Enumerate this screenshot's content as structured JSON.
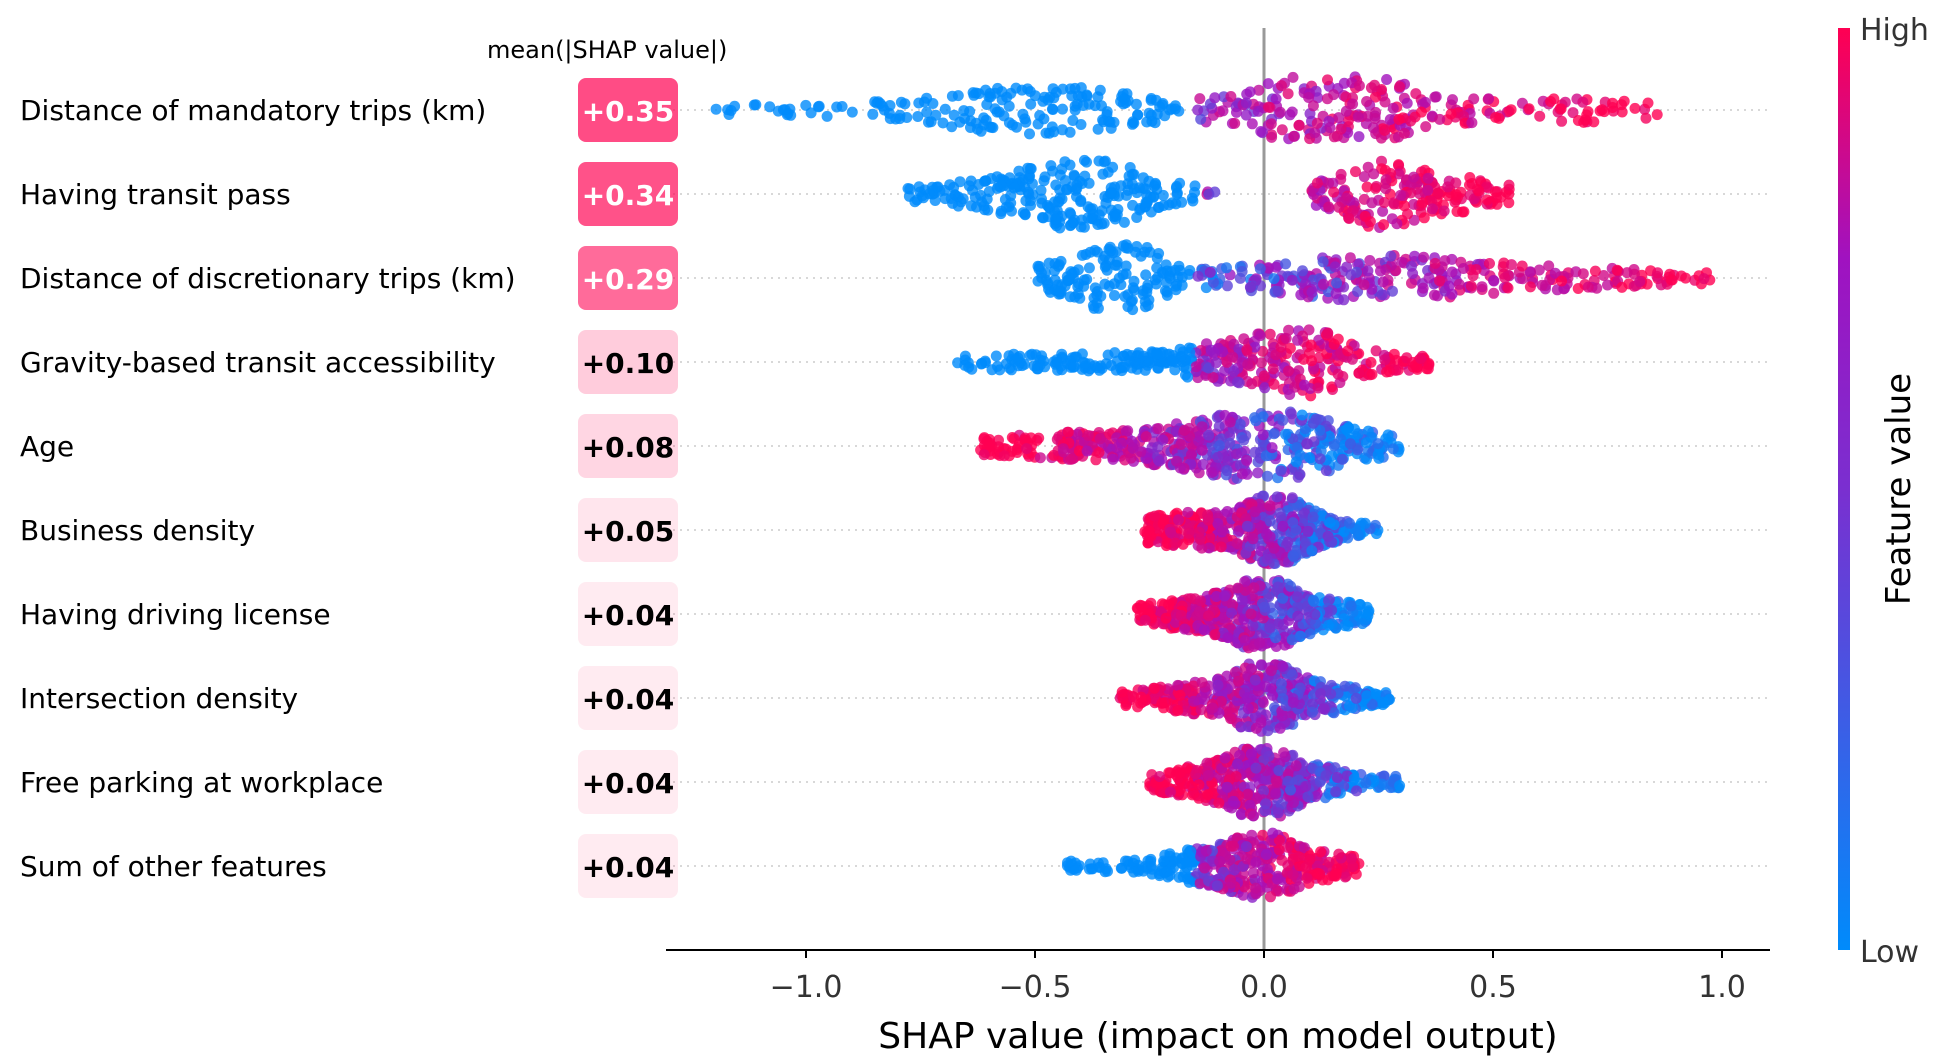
{
  "chart_data": {
    "type": "scatter",
    "subtype": "shap-beeswarm",
    "xlabel": "SHAP value (impact on model output)",
    "x_ticks": [
      -1.0,
      -0.5,
      0.0,
      0.5,
      1.0
    ],
    "x_tick_labels": [
      "−1.0",
      "−0.5",
      "0.0",
      "0.5",
      "1.0"
    ],
    "xlim": [
      -1.3,
      1.1
    ],
    "value_column_header": "mean(|SHAP value|)",
    "colorbar": {
      "title": "Feature value",
      "high_label": "High",
      "low_label": "Low",
      "low_color": "#008bfb",
      "mid_color": "#a012c0",
      "high_color": "#ff0052"
    },
    "badge_color": "#ff0051",
    "features": [
      {
        "name": "Distance of mandatory trips (km)",
        "value_label": "+0.35",
        "mean_abs": 0.35,
        "low_color_side": "negative",
        "bulges": [
          [
            -0.5,
            0.7,
            0.18
          ],
          [
            0.1,
            0.8,
            0.12
          ],
          [
            0.25,
            0.6,
            0.15
          ],
          [
            0.7,
            0.25,
            0.1
          ]
        ],
        "neg_extent": -1.2,
        "pos_extent": 0.86
      },
      {
        "name": "Having transit pass",
        "value_label": "+0.34",
        "mean_abs": 0.34,
        "low_color_side": "negative",
        "bulges": [
          [
            -0.37,
            1.0,
            0.1
          ],
          [
            -0.55,
            0.4,
            0.12
          ],
          [
            0.26,
            1.0,
            0.09
          ],
          [
            0.42,
            0.3,
            0.08
          ]
        ],
        "neg_extent": -0.78,
        "pos_extent": 0.54,
        "gap": [
          -0.1,
          0.1
        ]
      },
      {
        "name": "Distance of discretionary trips (km)",
        "value_label": "+0.29",
        "mean_abs": 0.29,
        "low_color_side": "negative",
        "bulges": [
          [
            -0.3,
            1.0,
            0.06
          ],
          [
            -0.4,
            0.4,
            0.12
          ],
          [
            0.12,
            0.35,
            0.15
          ],
          [
            0.35,
            0.45,
            0.18
          ],
          [
            0.7,
            0.15,
            0.12
          ]
        ],
        "neg_extent": -0.5,
        "pos_extent": 0.98
      },
      {
        "name": "Gravity-based transit accessibility",
        "value_label": "+0.10",
        "mean_abs": 0.1,
        "low_color_side": "negative",
        "bulges": [
          [
            0.07,
            1.0,
            0.06
          ],
          [
            -0.05,
            0.5,
            0.12
          ],
          [
            -0.4,
            0.12,
            0.2
          ],
          [
            0.2,
            0.3,
            0.08
          ]
        ],
        "neg_extent": -0.67,
        "pos_extent": 0.37
      },
      {
        "name": "Age",
        "value_label": "+0.08",
        "mean_abs": 0.08,
        "low_color_side": "positive",
        "bulges": [
          [
            0.03,
            1.0,
            0.08
          ],
          [
            -0.12,
            0.6,
            0.1
          ],
          [
            -0.4,
            0.3,
            0.15
          ],
          [
            0.18,
            0.35,
            0.08
          ]
        ],
        "neg_extent": -0.62,
        "pos_extent": 0.3
      },
      {
        "name": "Business density",
        "value_label": "+0.05",
        "mean_abs": 0.05,
        "low_color_side": "positive",
        "bulges": [
          [
            0.02,
            1.0,
            0.05
          ],
          [
            -0.15,
            0.45,
            0.1
          ],
          [
            0.1,
            0.3,
            0.06
          ]
        ],
        "neg_extent": -0.26,
        "pos_extent": 0.25
      },
      {
        "name": "Having driving license",
        "value_label": "+0.04",
        "mean_abs": 0.04,
        "low_color_side": "positive",
        "bulges": [
          [
            0.0,
            1.0,
            0.05
          ],
          [
            -0.12,
            0.45,
            0.1
          ],
          [
            0.12,
            0.35,
            0.07
          ]
        ],
        "neg_extent": -0.28,
        "pos_extent": 0.23
      },
      {
        "name": "Intersection density",
        "value_label": "+0.04",
        "mean_abs": 0.04,
        "low_color_side": "positive",
        "bulges": [
          [
            0.0,
            1.0,
            0.05
          ],
          [
            -0.12,
            0.4,
            0.1
          ],
          [
            0.12,
            0.35,
            0.07
          ]
        ],
        "neg_extent": -0.32,
        "pos_extent": 0.28
      },
      {
        "name": "Free parking at workplace",
        "value_label": "+0.04",
        "mean_abs": 0.04,
        "low_color_side": "positive",
        "bulges": [
          [
            0.0,
            1.0,
            0.05
          ],
          [
            -0.1,
            0.45,
            0.09
          ],
          [
            0.12,
            0.35,
            0.06
          ]
        ],
        "neg_extent": -0.25,
        "pos_extent": 0.3
      },
      {
        "name": "Sum of other features",
        "value_label": "+0.04",
        "mean_abs": 0.04,
        "low_color_side": "negative",
        "bulges": [
          [
            0.0,
            1.0,
            0.05
          ],
          [
            -0.12,
            0.45,
            0.08
          ],
          [
            0.12,
            0.3,
            0.06
          ]
        ],
        "neg_extent": -0.43,
        "pos_extent": 0.21
      }
    ]
  }
}
